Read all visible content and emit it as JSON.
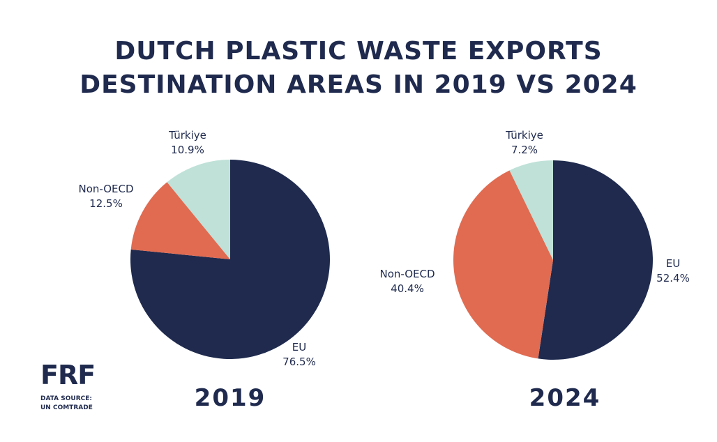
{
  "title_lines": [
    "DUTCH PLASTIC WASTE EXPORTS",
    "DESTINATION AREAS IN 2019 VS 2024"
  ],
  "colors": {
    "EU": "#1f2a4e",
    "Non-OECD": "#e06b51",
    "Türkiye": "#bfe1d8",
    "text": "#1f2a4e"
  },
  "logo": {
    "mark": "FRF",
    "source_line1": "DATA SOURCE:",
    "source_line2": "UN COMTRADE"
  },
  "chart_data": [
    {
      "type": "pie",
      "year_label": "2019",
      "slices": [
        {
          "name": "EU",
          "value": 76.5,
          "label": "76.5%"
        },
        {
          "name": "Non-OECD",
          "value": 12.5,
          "label": "12.5%"
        },
        {
          "name": "Türkiye",
          "value": 10.9,
          "label": "10.9%"
        }
      ]
    },
    {
      "type": "pie",
      "year_label": "2024",
      "slices": [
        {
          "name": "EU",
          "value": 52.4,
          "label": "52.4%"
        },
        {
          "name": "Non-OECD",
          "value": 40.4,
          "label": "40.4%"
        },
        {
          "name": "Türkiye",
          "value": 7.2,
          "label": "7.2%"
        }
      ]
    }
  ]
}
